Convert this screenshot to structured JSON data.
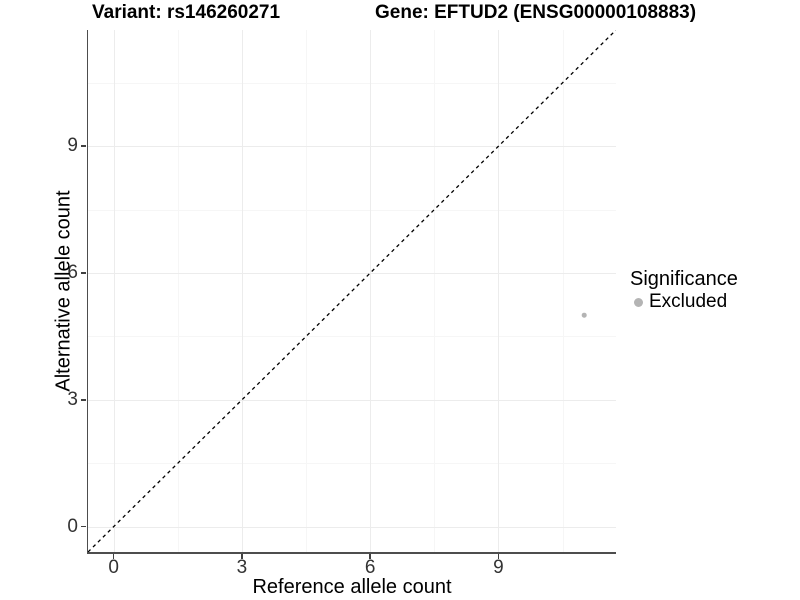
{
  "figure": {
    "title_left": "Variant: rs146260271",
    "title_right": "Gene: EFTUD2 (ENSG00000108883)"
  },
  "chart_data": {
    "type": "scatter",
    "title": "Variant: rs146260271   Gene: EFTUD2 (ENSG00000108883)",
    "xlabel": "Reference allele count",
    "ylabel": "Alternative allele count",
    "xlim": [
      -0.6,
      11.75
    ],
    "ylim": [
      -0.6,
      11.75
    ],
    "x_ticks": [
      0,
      3,
      6,
      9
    ],
    "y_ticks": [
      0,
      3,
      6,
      9
    ],
    "x_minor_ticks": [
      1.5,
      4.5,
      7.5,
      10.5
    ],
    "y_minor_ticks": [
      1.5,
      4.5,
      7.5,
      10.5
    ],
    "grid": "major and minor gridlines on white background",
    "identity_line": {
      "slope": 1,
      "intercept": 0,
      "style": "dashed",
      "color": "#000000"
    },
    "series": [
      {
        "name": "Excluded",
        "color": "#b4b4b4",
        "point_radius": 2.3,
        "points": [
          {
            "x": 11,
            "y": 5
          }
        ]
      }
    ],
    "legend": {
      "title": "Significance",
      "position": "right",
      "entries": [
        {
          "label": "Excluded",
          "color": "#b4b4b4"
        }
      ]
    }
  },
  "palette": {
    "background": "#ffffff",
    "axis_line": "#4d4d4d",
    "tick_label": "#333333",
    "grid_major": "#ececec",
    "grid_minor": "#f6f6f6",
    "title_text": "#000000",
    "excluded_gray": "#b4b4b4"
  }
}
